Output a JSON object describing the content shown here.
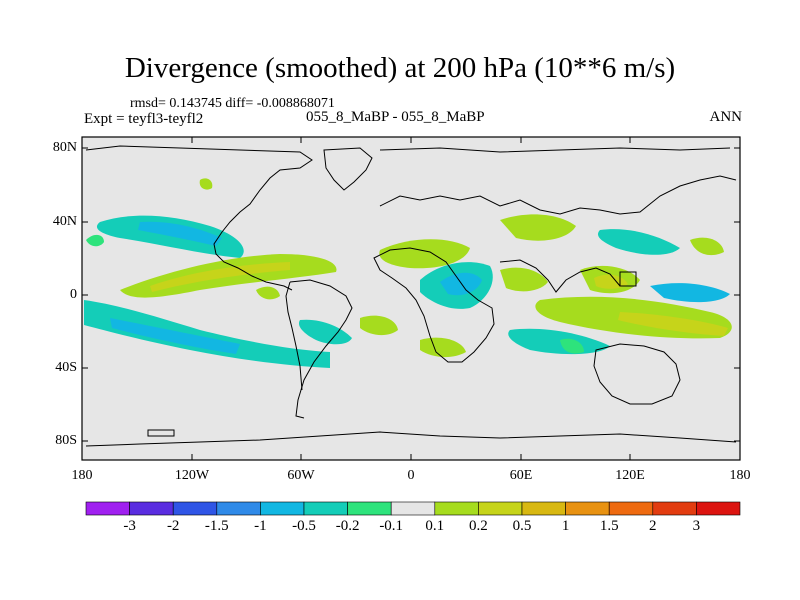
{
  "title": "Divergence (smoothed) at 200 hPa (10**6 m/s)",
  "stats": "rmsd= 0.143745 diff= -0.008868071",
  "experiment": "Expt = teyfl3-teyfl2",
  "case_pair": "055_8_MaBP - 055_8_MaBP",
  "season": "ANN",
  "lat_labels": [
    "80N",
    "40N",
    "0",
    "40S",
    "80S"
  ],
  "lon_labels": [
    "180",
    "120W",
    "60W",
    "0",
    "60E",
    "120E",
    "180"
  ],
  "colorbar": {
    "labels": [
      "-3",
      "-2",
      "-1.5",
      "-1",
      "-0.5",
      "-0.2",
      "-0.1",
      "0.1",
      "0.2",
      "0.5",
      "1",
      "1.5",
      "2",
      "3"
    ],
    "colors": [
      "#a020f0",
      "#5a2de0",
      "#2f55e6",
      "#2f8ae8",
      "#12b7e2",
      "#14cdb8",
      "#2ee37c",
      "#e6e6e6",
      "#a6dc1e",
      "#c6d41a",
      "#d8b812",
      "#e89212",
      "#ee6a10",
      "#e23c10",
      "#dc1410"
    ]
  },
  "colors": {
    "background": "#e6e6e6",
    "coast": "#000000",
    "teal": "#14cdb8",
    "blue": "#12b7e2",
    "green": "#2ee37c",
    "lime": "#a6dc1e",
    "olive": "#c6d41a"
  }
}
